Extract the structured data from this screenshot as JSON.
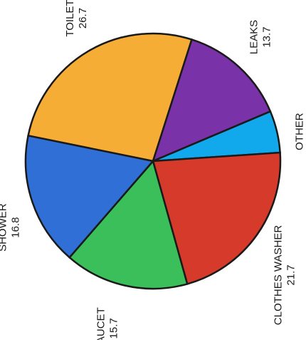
{
  "chart_data": {
    "type": "pie",
    "slices": [
      {
        "name": "TOILET",
        "value": 26.7,
        "display": "26.7",
        "color": "#f6ad35"
      },
      {
        "name": "LEAKS",
        "value": 13.7,
        "display": "13.7",
        "color": "#7a32a8"
      },
      {
        "name": "OTHER",
        "value": 5.3,
        "display": "5.3",
        "color": "#12a9ec"
      },
      {
        "name": "CLOTHES WASHER",
        "value": 21.7,
        "display": "21.7",
        "color": "#d63a2b"
      },
      {
        "name": "FAUCET",
        "value": 15.7,
        "display": "15.7",
        "color": "#3bbf5a"
      },
      {
        "name": "SHOWER",
        "value": 16.8,
        "display": "16.8",
        "color": "#2f6fd6"
      }
    ],
    "label_orientation": "rotated -90 degrees"
  }
}
